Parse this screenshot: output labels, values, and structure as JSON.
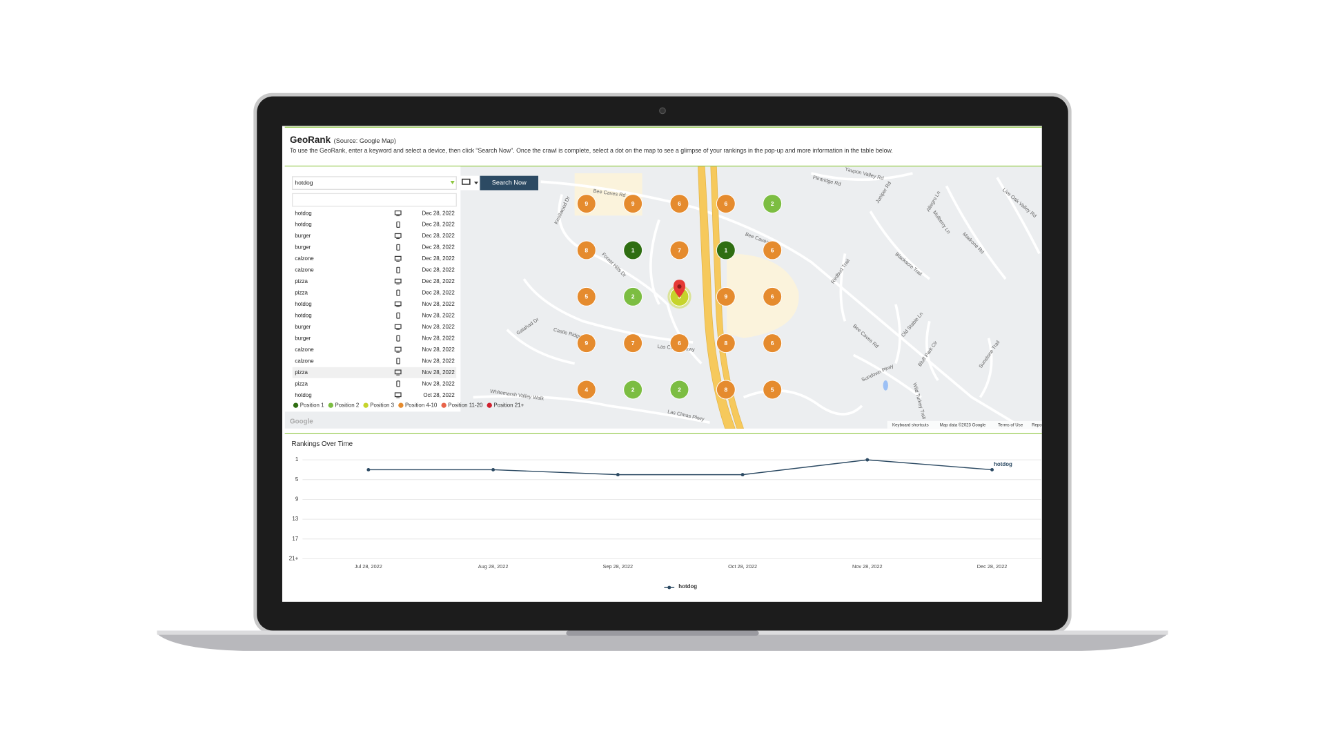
{
  "header": {
    "title": "GeoRank",
    "source": "(Source: Google Map)",
    "instructions": "To use the GeoRank, enter a keyword and select a device, then click “Search Now”. Once the crawl is complete, select a dot on the map to see a glimpse of your rankings in the pop-up and more information in the table below."
  },
  "search": {
    "keyword": "hotdog",
    "button": "Search Now"
  },
  "history": [
    {
      "keyword": "hotdog",
      "device": "desktop",
      "date": "Dec 28, 2022"
    },
    {
      "keyword": "hotdog",
      "device": "mobile",
      "date": "Dec 28, 2022"
    },
    {
      "keyword": "burger",
      "device": "desktop",
      "date": "Dec 28, 2022"
    },
    {
      "keyword": "burger",
      "device": "mobile",
      "date": "Dec 28, 2022"
    },
    {
      "keyword": "calzone",
      "device": "desktop",
      "date": "Dec 28, 2022"
    },
    {
      "keyword": "calzone",
      "device": "mobile",
      "date": "Dec 28, 2022"
    },
    {
      "keyword": "pizza",
      "device": "desktop",
      "date": "Dec 28, 2022"
    },
    {
      "keyword": "pizza",
      "device": "mobile",
      "date": "Dec 28, 2022"
    },
    {
      "keyword": "hotdog",
      "device": "desktop",
      "date": "Nov 28, 2022"
    },
    {
      "keyword": "hotdog",
      "device": "mobile",
      "date": "Nov 28, 2022"
    },
    {
      "keyword": "burger",
      "device": "desktop",
      "date": "Nov 28, 2022"
    },
    {
      "keyword": "burger",
      "device": "mobile",
      "date": "Nov 28, 2022"
    },
    {
      "keyword": "calzone",
      "device": "desktop",
      "date": "Nov 28, 2022"
    },
    {
      "keyword": "calzone",
      "device": "mobile",
      "date": "Nov 28, 2022"
    },
    {
      "keyword": "pizza",
      "device": "desktop",
      "date": "Nov 28, 2022"
    },
    {
      "keyword": "pizza",
      "device": "mobile",
      "date": "Nov 28, 2022"
    },
    {
      "keyword": "hotdog",
      "device": "desktop",
      "date": "Oct 28, 2022"
    }
  ],
  "legend": [
    {
      "label": "Position 1",
      "color": "#2f6e12"
    },
    {
      "label": "Position 2",
      "color": "#7cbd42"
    },
    {
      "label": "Position 3",
      "color": "#c6d42c"
    },
    {
      "label": "Position 4-10",
      "color": "#e58b2e"
    },
    {
      "label": "Position 11-20",
      "color": "#e8644a"
    },
    {
      "label": "Position 21+",
      "color": "#d0202e"
    }
  ],
  "map": {
    "grid": [
      [
        9,
        9,
        6,
        6,
        2
      ],
      [
        8,
        1,
        7,
        1,
        6
      ],
      [
        5,
        2,
        3,
        9,
        6
      ],
      [
        9,
        7,
        6,
        8,
        6
      ],
      [
        4,
        2,
        2,
        8,
        5
      ]
    ],
    "street_labels": [
      "Bee Caves Rd",
      "Bee Caves Rd",
      "Bee Caves Rd",
      "Flintridge Rd",
      "Yaupon Valley Rd",
      "Live Oak Valley Rd",
      "Juniper Rd",
      "Knollwood Dr",
      "Forest Hills Dr",
      "Castle Ridge",
      "Galahad Dr",
      "Las Cimas Pkwy",
      "Las Cimas Pkwy",
      "Whitemarsh Valley Walk",
      "Redbud Trail",
      "Blackacre Trail",
      "Old Stable Ln",
      "Bluff Park Cir",
      "Sundown Pkwy",
      "Wild Turkey Trail",
      "Mulberry Ln",
      "Allegro Ln",
      "Madrone Rd",
      "Sunstone Trail"
    ],
    "footer": [
      "Keyboard shortcuts",
      "Map data ©2023 Google",
      "Terms of Use",
      "Repo"
    ],
    "logo": "Google"
  },
  "rankings_chart": {
    "type": "line",
    "title": "Rankings Over Time",
    "categories": [
      "Jul 28, 2022",
      "Aug 28, 2022",
      "Sep 28, 2022",
      "Oct 28, 2022",
      "Nov 28, 2022",
      "Dec 28, 2022"
    ],
    "series": [
      {
        "name": "hotdog",
        "color": "#2c4a63",
        "values": [
          3,
          3,
          4,
          4,
          1,
          3
        ]
      }
    ],
    "ylim": [
      1,
      21
    ],
    "y_reversed": true,
    "yticks": [
      1,
      5,
      9,
      13,
      17,
      {
        "value": 21,
        "label": "21+"
      }
    ],
    "grid": true
  }
}
